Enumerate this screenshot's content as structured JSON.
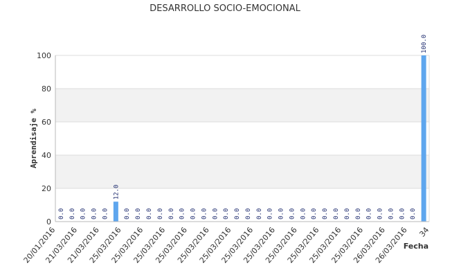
{
  "chart_data": {
    "type": "bar",
    "title": "DESARROLLO SOCIO-EMOCIONAL",
    "xlabel": "Fecha",
    "ylabel": "Aprendisaje %",
    "ylim": [
      0,
      100
    ],
    "yticks": [
      "0",
      "20",
      "40",
      "60",
      "80",
      "100"
    ],
    "grid": true,
    "bar_color": "#5ea6ee",
    "band_color": "#f2f2f2",
    "label_color": "#1c2a6e",
    "values": [
      0,
      0,
      0,
      0,
      0,
      12,
      0,
      0,
      0,
      0,
      0,
      0,
      0,
      0,
      0,
      0,
      0,
      0,
      0,
      0,
      0,
      0,
      0,
      0,
      0,
      0,
      0,
      0,
      0,
      0,
      0,
      0,
      0,
      100
    ],
    "value_labels": [
      "0.0",
      "0.0",
      "0.0",
      "0.0",
      "0.0",
      "12.0",
      "0.0",
      "0.0",
      "0.0",
      "0.0",
      "0.0",
      "0.0",
      "0.0",
      "0.0",
      "0.0",
      "0.0",
      "0.0",
      "0.0",
      "0.0",
      "0.0",
      "0.0",
      "0.0",
      "0.0",
      "0.0",
      "0.0",
      "0.0",
      "0.0",
      "0.0",
      "0.0",
      "0.0",
      "0.0",
      "0.0",
      "0.0",
      "100.0"
    ],
    "category_ticks": [
      "20/01/2016",
      "21/03/2016",
      "21/03/2016",
      "25/03/2016",
      "25/03/2016",
      "25/03/2016",
      "25/03/2016",
      "25/03/2016",
      "25/03/2016",
      "25/03/2016",
      "25/03/2016",
      "25/03/2016",
      "25/03/2016",
      "25/03/2016",
      "25/03/2016",
      "26/03/2016",
      "26/03/2016",
      "34"
    ]
  }
}
